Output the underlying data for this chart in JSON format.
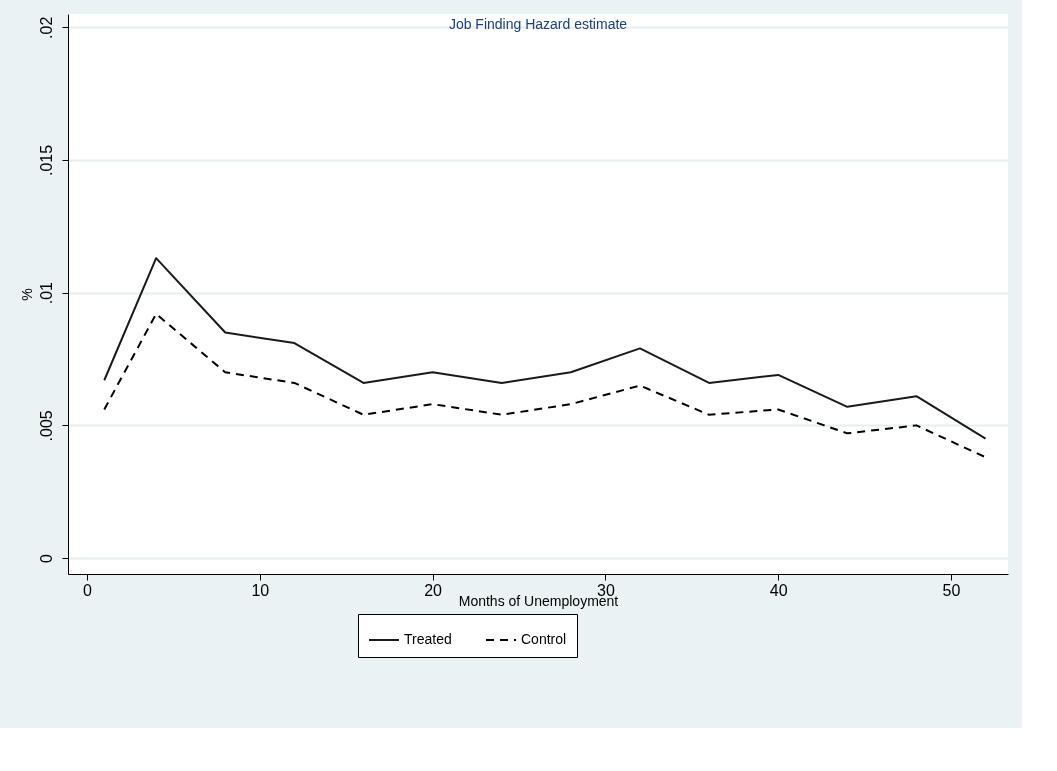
{
  "chart_data": {
    "type": "line",
    "title": "Job Finding Hazard estimate",
    "xlabel": "Months of Unemployment",
    "ylabel": "%",
    "x": [
      1,
      4,
      8,
      12,
      16,
      20,
      24,
      28,
      32,
      36,
      40,
      44,
      48,
      52
    ],
    "series": [
      {
        "name": "Treated",
        "color": "#1a1a1a",
        "line_style": "solid",
        "values": [
          0.0067,
          0.0113,
          0.0085,
          0.0081,
          0.0066,
          0.007,
          0.0066,
          0.007,
          0.0079,
          0.0066,
          0.0069,
          0.0057,
          0.0061,
          0.0045
        ]
      },
      {
        "name": "Control",
        "color": "#000000",
        "line_style": "dashed",
        "values": [
          0.0056,
          0.0092,
          0.007,
          0.0066,
          0.0054,
          0.0058,
          0.0054,
          0.0058,
          0.0065,
          0.0054,
          0.0056,
          0.0047,
          0.005,
          0.0038
        ]
      }
    ],
    "xlim": [
      -1.1,
      53.3
    ],
    "xticks": [
      0,
      10,
      20,
      30,
      40,
      50
    ],
    "ylim": [
      -0.0006,
      0.0205
    ],
    "yticks": [
      0,
      {
        "value": 0.005,
        "label": ".005"
      },
      {
        "value": 0.01,
        "label": ".01"
      },
      {
        "value": 0.015,
        "label": ".015"
      },
      {
        "value": 0.02,
        "label": ".02"
      }
    ],
    "grid": "y",
    "legend": "bottom",
    "marker": "none"
  }
}
